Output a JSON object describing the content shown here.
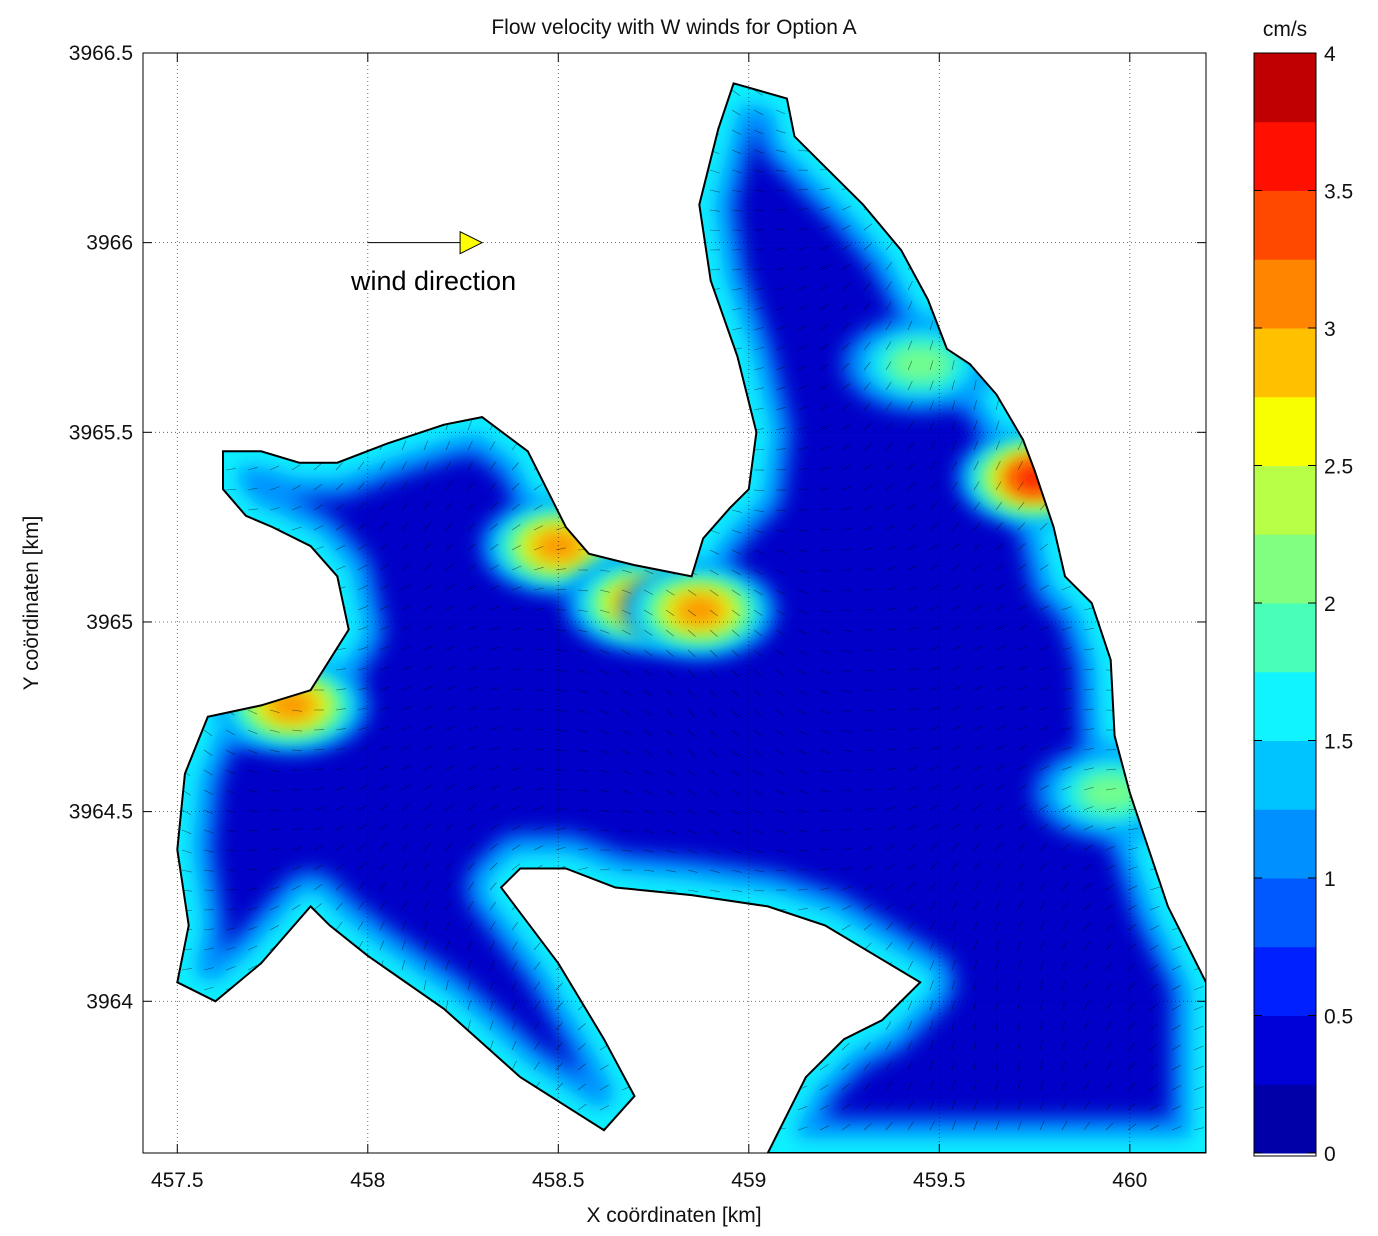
{
  "chart_data": {
    "type": "heatmap",
    "title": "Flow velocity with W winds for Option A",
    "xlabel": "X coördinaten [km]",
    "ylabel": "Y coördinaten [km]",
    "xlim": [
      457.41,
      460.2
    ],
    "ylim": [
      3963.6,
      3966.5
    ],
    "x_ticks": [
      {
        "value": 457.5,
        "label": "457.5"
      },
      {
        "value": 458,
        "label": "458"
      },
      {
        "value": 458.5,
        "label": "458.5"
      },
      {
        "value": 459,
        "label": "459"
      },
      {
        "value": 459.5,
        "label": "459.5"
      },
      {
        "value": 460,
        "label": "460"
      }
    ],
    "y_ticks": [
      {
        "value": 3964,
        "label": "3964"
      },
      {
        "value": 3964.5,
        "label": "3964.5"
      },
      {
        "value": 3965,
        "label": "3965"
      },
      {
        "value": 3965.5,
        "label": "3965.5"
      },
      {
        "value": 3966,
        "label": "3966"
      },
      {
        "value": 3966.5,
        "label": "3966.5"
      }
    ],
    "grid": true,
    "colorbar": {
      "unit_label": "cm/s",
      "min": 0,
      "max": 4,
      "step": 0.25,
      "ticks": [
        {
          "value": 0,
          "label": "0"
        },
        {
          "value": 0.5,
          "label": "0.5"
        },
        {
          "value": 1,
          "label": "1"
        },
        {
          "value": 1.5,
          "label": "1.5"
        },
        {
          "value": 2,
          "label": "2"
        },
        {
          "value": 2.5,
          "label": "2.5"
        },
        {
          "value": 3,
          "label": "3"
        },
        {
          "value": 3.5,
          "label": "3.5"
        },
        {
          "value": 4,
          "label": "4"
        }
      ],
      "colors": [
        "#0000a8",
        "#0000d8",
        "#0020ff",
        "#0058ff",
        "#0090ff",
        "#00c4ff",
        "#10f4ff",
        "#48ffb8",
        "#80ff80",
        "#b8ff48",
        "#f8ff00",
        "#ffc000",
        "#ff8400",
        "#ff4800",
        "#ff1000",
        "#c00000",
        "#800000"
      ]
    },
    "annotation": {
      "text": "wind direction",
      "arrow_from": [
        458.0,
        3966.0
      ],
      "arrow_to": [
        458.3,
        3966.0
      ],
      "marker_color": "#ffff00"
    },
    "domain_outline": [
      [
        457.62,
        3965.45
      ],
      [
        457.72,
        3965.45
      ],
      [
        457.82,
        3965.42
      ],
      [
        457.92,
        3965.42
      ],
      [
        458.05,
        3965.47
      ],
      [
        458.2,
        3965.52
      ],
      [
        458.3,
        3965.54
      ],
      [
        458.42,
        3965.45
      ],
      [
        458.52,
        3965.25
      ],
      [
        458.58,
        3965.18
      ],
      [
        458.7,
        3965.15
      ],
      [
        458.85,
        3965.12
      ],
      [
        458.88,
        3965.22
      ],
      [
        458.95,
        3965.3
      ],
      [
        459.0,
        3965.35
      ],
      [
        459.02,
        3965.5
      ],
      [
        458.97,
        3965.7
      ],
      [
        458.9,
        3965.9
      ],
      [
        458.87,
        3966.1
      ],
      [
        458.92,
        3966.3
      ],
      [
        458.96,
        3966.42
      ],
      [
        459.1,
        3966.38
      ],
      [
        459.12,
        3966.28
      ],
      [
        459.2,
        3966.2
      ],
      [
        459.3,
        3966.1
      ],
      [
        459.4,
        3965.98
      ],
      [
        459.47,
        3965.85
      ],
      [
        459.52,
        3965.72
      ],
      [
        459.58,
        3965.68
      ],
      [
        459.65,
        3965.6
      ],
      [
        459.72,
        3965.48
      ],
      [
        459.75,
        3965.4
      ],
      [
        459.8,
        3965.25
      ],
      [
        459.83,
        3965.12
      ],
      [
        459.9,
        3965.05
      ],
      [
        459.95,
        3964.9
      ],
      [
        459.96,
        3964.7
      ],
      [
        460.0,
        3964.55
      ],
      [
        460.05,
        3964.4
      ],
      [
        460.1,
        3964.25
      ],
      [
        460.2,
        3964.05
      ],
      [
        460.2,
        3963.6
      ],
      [
        459.05,
        3963.6
      ],
      [
        459.15,
        3963.8
      ],
      [
        459.25,
        3963.9
      ],
      [
        459.35,
        3963.95
      ],
      [
        459.45,
        3964.05
      ],
      [
        459.2,
        3964.2
      ],
      [
        459.05,
        3964.25
      ],
      [
        458.85,
        3964.28
      ],
      [
        458.65,
        3964.3
      ],
      [
        458.52,
        3964.35
      ],
      [
        458.4,
        3964.35
      ],
      [
        458.35,
        3964.3
      ],
      [
        458.5,
        3964.1
      ],
      [
        458.62,
        3963.9
      ],
      [
        458.7,
        3963.75
      ],
      [
        458.62,
        3963.66
      ],
      [
        458.4,
        3963.8
      ],
      [
        458.2,
        3963.98
      ],
      [
        458.0,
        3964.12
      ],
      [
        457.9,
        3964.2
      ],
      [
        457.85,
        3964.25
      ],
      [
        457.72,
        3964.1
      ],
      [
        457.6,
        3964.0
      ],
      [
        457.5,
        3964.05
      ],
      [
        457.53,
        3964.2
      ],
      [
        457.5,
        3964.4
      ],
      [
        457.52,
        3964.6
      ],
      [
        457.58,
        3964.75
      ],
      [
        457.72,
        3964.78
      ],
      [
        457.85,
        3964.82
      ],
      [
        457.95,
        3964.98
      ],
      [
        457.92,
        3965.12
      ],
      [
        457.85,
        3965.2
      ],
      [
        457.75,
        3965.25
      ],
      [
        457.68,
        3965.28
      ],
      [
        457.62,
        3965.35
      ]
    ],
    "hotspots": [
      {
        "x": 458.5,
        "y": 3965.2,
        "value": 3.4
      },
      {
        "x": 458.72,
        "y": 3965.05,
        "value": 3.0
      },
      {
        "x": 458.87,
        "y": 3965.03,
        "value": 3.3
      },
      {
        "x": 457.8,
        "y": 3964.78,
        "value": 3.1
      },
      {
        "x": 459.45,
        "y": 3965.68,
        "value": 2.2
      },
      {
        "x": 459.75,
        "y": 3965.38,
        "value": 3.6
      },
      {
        "x": 459.95,
        "y": 3964.55,
        "value": 2.1
      }
    ]
  }
}
